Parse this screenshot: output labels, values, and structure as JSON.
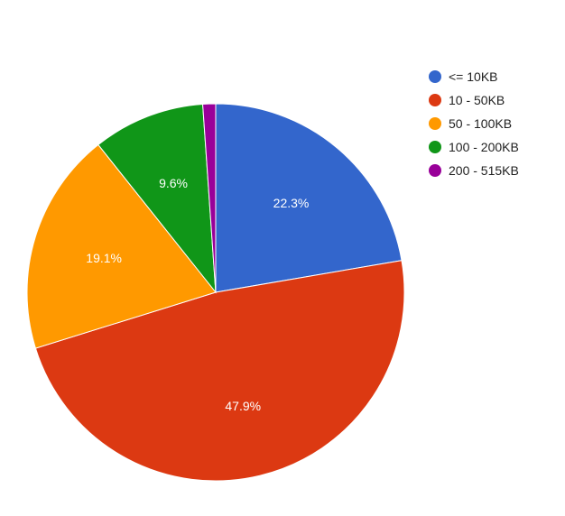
{
  "chart_data": {
    "type": "pie",
    "categories": [
      "<= 10KB",
      "10 - 50KB",
      "50 - 100KB",
      "100 - 200KB",
      "200 - 515KB"
    ],
    "values": [
      22.3,
      47.9,
      19.1,
      9.6,
      1.1
    ],
    "labels": [
      "22.3%",
      "47.9%",
      "19.1%",
      "9.6%",
      ""
    ],
    "colors": [
      "#3366cc",
      "#dc3912",
      "#ff9900",
      "#109618",
      "#990099"
    ],
    "legend_position": "right",
    "start_angle_deg": 0,
    "direction": "clockwise"
  }
}
